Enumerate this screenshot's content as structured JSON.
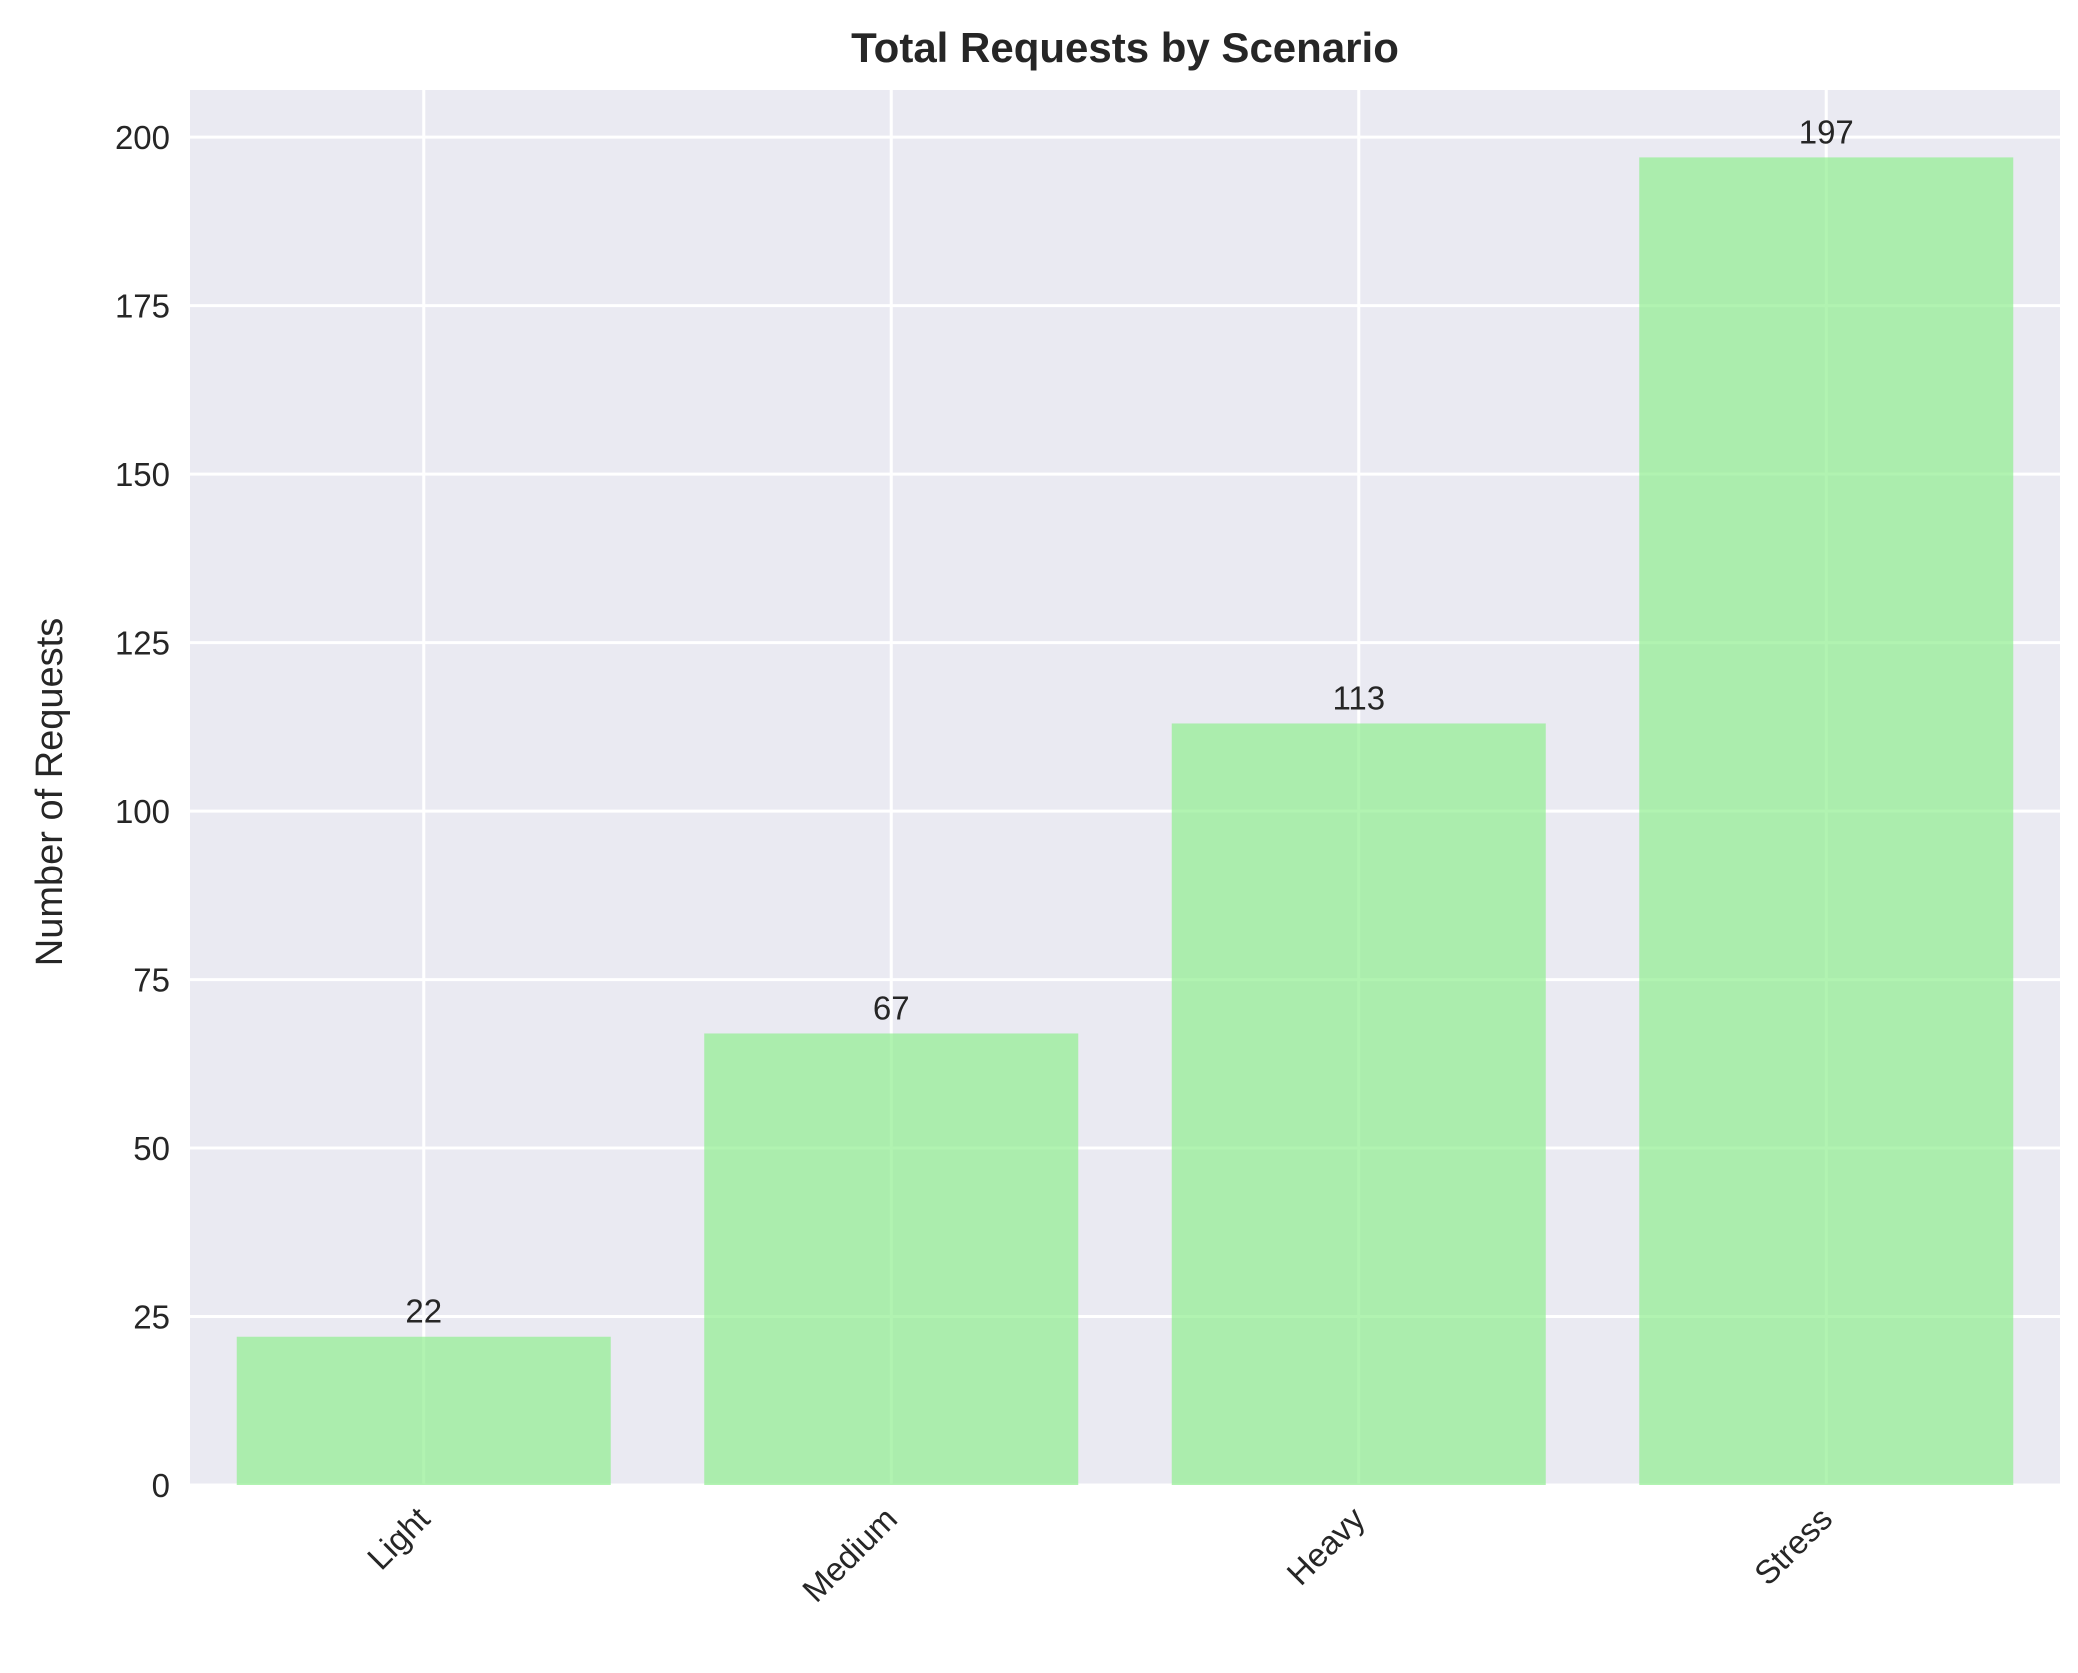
{
  "chart_data": {
    "type": "bar",
    "title": "Total Requests by Scenario",
    "xlabel": "",
    "ylabel": "Number of Requests",
    "categories": [
      "Light",
      "Medium",
      "Heavy",
      "Stress"
    ],
    "values": [
      22,
      67,
      113,
      197
    ],
    "ylim": [
      0,
      207
    ],
    "yticks": [
      0,
      25,
      50,
      75,
      100,
      125,
      150,
      175,
      200
    ],
    "grid": true,
    "legend": "none",
    "xtick_rotation": 45,
    "colors": {
      "bar": "#90ee90",
      "plot_background": "#eaeaf2",
      "grid": "#ffffff",
      "text": "#262626"
    }
  }
}
